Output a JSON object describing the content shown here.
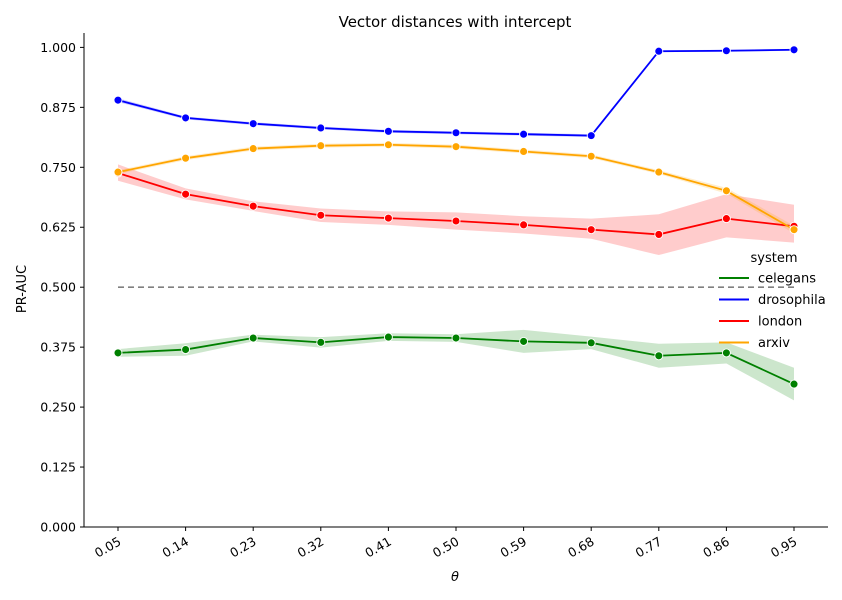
{
  "chart_data": {
    "type": "line",
    "title": "Vector distances with intercept",
    "xlabel": "θ",
    "ylabel": "PR-AUC",
    "x": [
      0.05,
      0.14,
      0.23,
      0.32,
      0.41,
      0.5,
      0.59,
      0.68,
      0.77,
      0.86,
      0.95
    ],
    "x_tick_labels": [
      "0.05",
      "0.14",
      "0.23",
      "0.32",
      "0.41",
      "0.50",
      "0.59",
      "0.68",
      "0.77",
      "0.86",
      "0.95"
    ],
    "ylim": [
      0,
      1.03
    ],
    "y_ticks": [
      0.0,
      0.125,
      0.25,
      0.375,
      0.5,
      0.625,
      0.75,
      0.875,
      1.0
    ],
    "y_tick_labels": [
      "0.000",
      "0.125",
      "0.250",
      "0.375",
      "0.500",
      "0.625",
      "0.750",
      "0.875",
      "1.000"
    ],
    "reference_line": {
      "y": 0.5,
      "style": "dashed",
      "color": "#808080"
    },
    "legend": {
      "title": "system",
      "placement": "right"
    },
    "series": [
      {
        "name": "celegans",
        "color": "#008000",
        "values": [
          0.363,
          0.37,
          0.394,
          0.385,
          0.396,
          0.394,
          0.387,
          0.384,
          0.357,
          0.363,
          0.298
        ],
        "ci_lower": [
          0.355,
          0.357,
          0.387,
          0.374,
          0.388,
          0.386,
          0.363,
          0.371,
          0.332,
          0.341,
          0.264
        ],
        "ci_upper": [
          0.371,
          0.383,
          0.401,
          0.396,
          0.404,
          0.402,
          0.411,
          0.397,
          0.382,
          0.385,
          0.332
        ]
      },
      {
        "name": "drosophila",
        "color": "#0000ff",
        "values": [
          0.89,
          0.853,
          0.841,
          0.832,
          0.825,
          0.822,
          0.819,
          0.816,
          0.992,
          0.993,
          0.995
        ],
        "ci_lower": [
          0.886,
          0.85,
          0.838,
          0.829,
          0.822,
          0.819,
          0.816,
          0.813,
          0.99,
          0.991,
          0.993
        ],
        "ci_upper": [
          0.894,
          0.856,
          0.844,
          0.835,
          0.828,
          0.825,
          0.822,
          0.819,
          0.994,
          0.995,
          0.997
        ]
      },
      {
        "name": "london",
        "color": "#ff0000",
        "values": [
          0.738,
          0.694,
          0.669,
          0.65,
          0.644,
          0.638,
          0.63,
          0.62,
          0.61,
          0.643,
          0.627
        ],
        "ci_lower": [
          0.722,
          0.683,
          0.659,
          0.636,
          0.63,
          0.62,
          0.612,
          0.601,
          0.567,
          0.604,
          0.593
        ],
        "ci_upper": [
          0.756,
          0.706,
          0.679,
          0.664,
          0.658,
          0.656,
          0.648,
          0.643,
          0.652,
          0.694,
          0.672
        ]
      },
      {
        "name": "arxiv",
        "color": "#ffa500",
        "values": [
          0.74,
          0.769,
          0.789,
          0.795,
          0.797,
          0.793,
          0.783,
          0.773,
          0.74,
          0.701,
          0.62
        ],
        "ci_lower": [
          0.736,
          0.765,
          0.785,
          0.791,
          0.793,
          0.789,
          0.779,
          0.769,
          0.736,
          0.695,
          0.612
        ],
        "ci_upper": [
          0.744,
          0.773,
          0.793,
          0.799,
          0.801,
          0.797,
          0.787,
          0.777,
          0.744,
          0.707,
          0.628
        ]
      }
    ]
  }
}
